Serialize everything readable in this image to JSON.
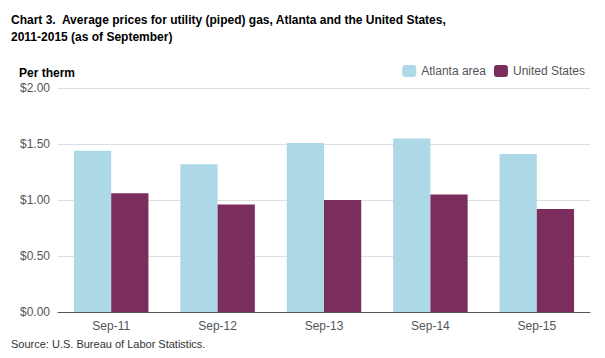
{
  "chart_data": {
    "type": "bar",
    "title": "Chart 3.  Average prices for utility (piped) gas, Atlanta and the United States,\n2011-2015 (as of September)",
    "ylabel": "Per therm",
    "annotations": [
      "Source: U.S. Bureau of Labor Statistics."
    ],
    "categories": [
      "Sep-11",
      "Sep-12",
      "Sep-13",
      "Sep-14",
      "Sep-15"
    ],
    "series": [
      {
        "name": "Atlanta area",
        "color": "#ADD8E6",
        "values": [
          1.44,
          1.32,
          1.51,
          1.55,
          1.41
        ]
      },
      {
        "name": "United States",
        "color": "#7B2D5E",
        "values": [
          1.06,
          0.96,
          1.0,
          1.05,
          0.92
        ]
      }
    ],
    "ylim": [
      0,
      2.0
    ],
    "yticks": [
      {
        "value": 0,
        "label": "$0.00"
      },
      {
        "value": 0.5,
        "label": "$0.50"
      },
      {
        "value": 1.0,
        "label": "$1.00"
      },
      {
        "value": 1.5,
        "label": "$1.50"
      },
      {
        "value": 2.0,
        "label": "$2.00"
      }
    ],
    "grid": true,
    "legend": "upper right"
  }
}
